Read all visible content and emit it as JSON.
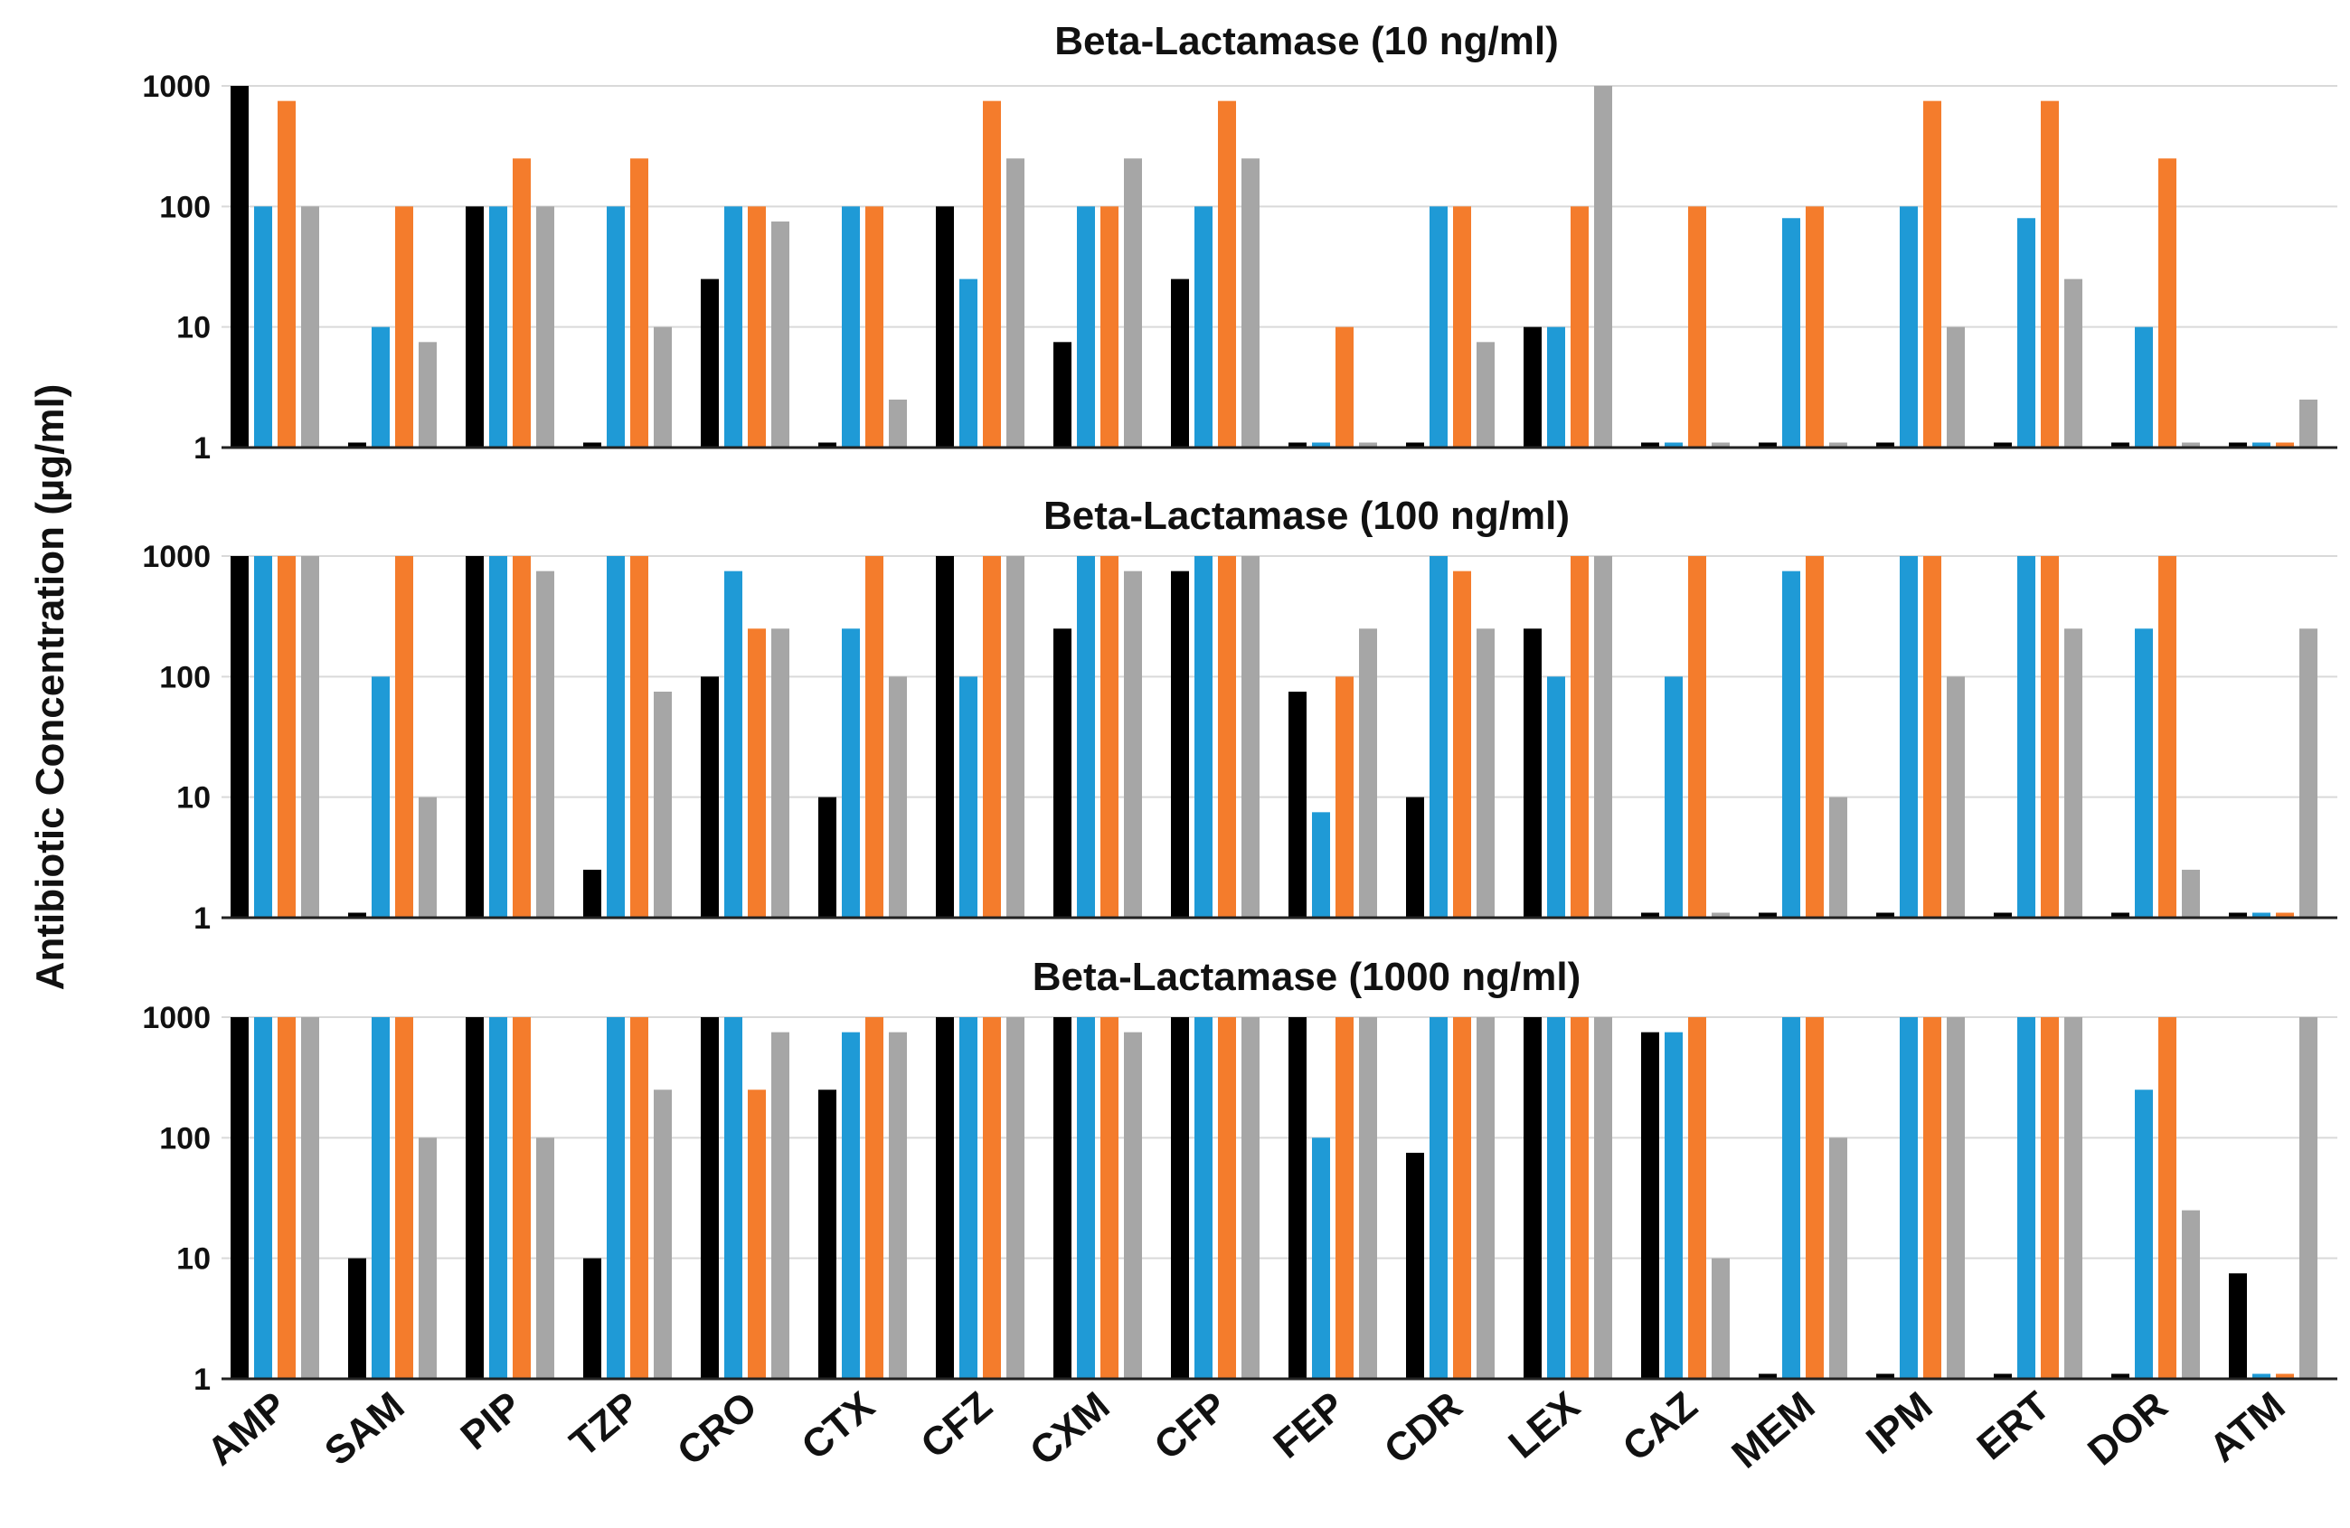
{
  "chart_data": {
    "type": "bar",
    "scale": "log",
    "ylabel": "Antibiotic Concentration (µg/ml)",
    "ylim": [
      1,
      1000
    ],
    "yticks": [
      "1",
      "10",
      "100",
      "1000"
    ],
    "categories": [
      "AMP",
      "SAM",
      "PIP",
      "TZP",
      "CRO",
      "CTX",
      "CFZ",
      "CXM",
      "CFP",
      "FEP",
      "CDR",
      "LEX",
      "CAZ",
      "MEM",
      "IPM",
      "ERT",
      "DOR",
      "ATM"
    ],
    "series_colors": [
      "#000000",
      "#1f9ad6",
      "#f47c2c",
      "#a6a6a6"
    ],
    "panels": [
      {
        "title": "Beta-Lactamase (10 ng/ml)",
        "series": [
          {
            "values": [
              1000,
              1.1,
              100,
              1.1,
              25,
              1.1,
              100,
              7.5,
              25,
              1.1,
              1.1,
              10,
              1.1,
              1.1,
              1.1,
              1.1,
              1.1,
              1.1
            ]
          },
          {
            "values": [
              100,
              10,
              100,
              100,
              100,
              100,
              25,
              100,
              100,
              1.1,
              100,
              10,
              1.1,
              80,
              100,
              80,
              10,
              1.1
            ]
          },
          {
            "values": [
              750,
              100,
              250,
              250,
              100,
              100,
              750,
              100,
              750,
              10,
              100,
              100,
              100,
              100,
              750,
              750,
              250,
              1.1
            ]
          },
          {
            "values": [
              100,
              7.5,
              100,
              10,
              75,
              2.5,
              250,
              250,
              250,
              1.1,
              7.5,
              1000,
              1.1,
              1.1,
              10,
              25,
              1.1,
              2.5
            ]
          }
        ]
      },
      {
        "title": "Beta-Lactamase (100 ng/ml)",
        "series": [
          {
            "values": [
              1000,
              1.1,
              1000,
              2.5,
              100,
              10,
              1000,
              250,
              750,
              75,
              10,
              250,
              1.1,
              1.1,
              1.1,
              1.1,
              1.1,
              1.1
            ]
          },
          {
            "values": [
              1000,
              100,
              1000,
              1000,
              750,
              250,
              100,
              1000,
              1000,
              7.5,
              1000,
              100,
              100,
              750,
              1000,
              1000,
              250,
              1.1
            ]
          },
          {
            "values": [
              1000,
              1000,
              1000,
              1000,
              250,
              1000,
              1000,
              1000,
              1000,
              100,
              750,
              1000,
              1000,
              1000,
              1000,
              1000,
              1000,
              1.1
            ]
          },
          {
            "values": [
              1000,
              10,
              750,
              75,
              250,
              100,
              1000,
              750,
              1000,
              250,
              250,
              1000,
              1.1,
              10,
              100,
              250,
              2.5,
              250
            ]
          }
        ]
      },
      {
        "title": "Beta-Lactamase (1000 ng/ml)",
        "series": [
          {
            "values": [
              1000,
              10,
              1000,
              10,
              1000,
              250,
              1000,
              1000,
              1000,
              1000,
              75,
              1000,
              750,
              1.1,
              1.1,
              1.1,
              1.1,
              7.5
            ]
          },
          {
            "values": [
              1000,
              1000,
              1000,
              1000,
              1000,
              750,
              1000,
              1000,
              1000,
              100,
              1000,
              1000,
              750,
              1000,
              1000,
              1000,
              250,
              1.1
            ]
          },
          {
            "values": [
              1000,
              1000,
              1000,
              1000,
              250,
              1000,
              1000,
              1000,
              1000,
              1000,
              1000,
              1000,
              1000,
              1000,
              1000,
              1000,
              1000,
              1.1
            ]
          },
          {
            "values": [
              1000,
              100,
              100,
              250,
              750,
              750,
              1000,
              750,
              1000,
              1000,
              1000,
              1000,
              10,
              100,
              1000,
              1000,
              25,
              1000
            ]
          }
        ]
      }
    ]
  }
}
